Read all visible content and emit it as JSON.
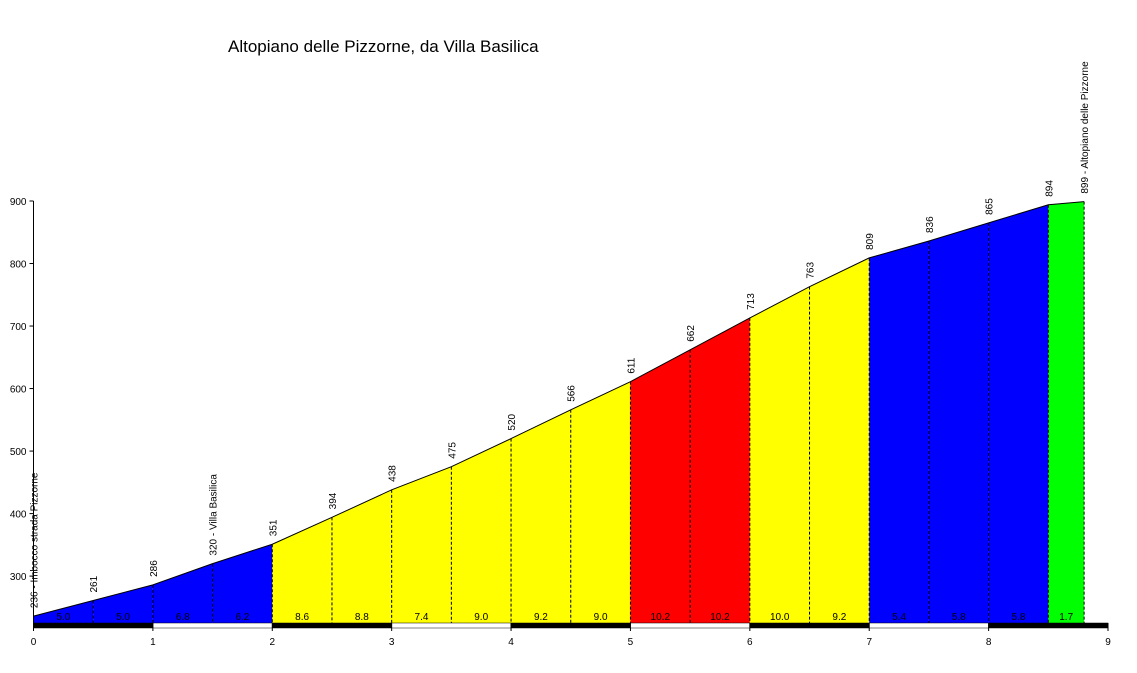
{
  "chart_data": {
    "type": "area",
    "title": "Altopiano delle Pizzorne, da Villa Basilica",
    "x": [
      0,
      0.5,
      1,
      1.5,
      2,
      2.5,
      3,
      3.5,
      4,
      4.5,
      5,
      5.5,
      6,
      6.5,
      7,
      7.5,
      8,
      8.5,
      8.8
    ],
    "values": [
      236,
      261,
      286,
      320,
      351,
      394,
      438,
      475,
      520,
      566,
      611,
      662,
      713,
      763,
      809,
      836,
      865,
      894,
      899
    ],
    "value_labels": [
      "236 - Imbocco strada Pizzorne",
      "261",
      "286",
      "320 - Villa Basilica",
      "351",
      "394",
      "438",
      "475",
      "520",
      "566",
      "611",
      "662",
      "713",
      "763",
      "809",
      "836",
      "865",
      "894",
      "899 - Altopiano delle Pizzorne"
    ],
    "gradients": {
      "values": [
        5.0,
        5.0,
        6.8,
        6.2,
        8.6,
        8.8,
        7.4,
        9.0,
        9.2,
        9.0,
        10.2,
        10.2,
        10.0,
        9.2,
        5.4,
        5.8,
        5.8,
        1.7
      ],
      "value_labels": [
        "5.0",
        "5.0",
        "6.8",
        "6.2",
        "8.6",
        "8.8",
        "7.4",
        "9.0",
        "9.2",
        "9.0",
        "10.2",
        "10.2",
        "10.0",
        "9.2",
        "5.4",
        "5.8",
        "5.8",
        "1.7"
      ],
      "colors": [
        "#0000ff",
        "#0000ff",
        "#0000ff",
        "#0000ff",
        "#ffff00",
        "#ffff00",
        "#ffff00",
        "#ffff00",
        "#ffff00",
        "#ffff00",
        "#ff0000",
        "#ff0000",
        "#ffff00",
        "#ffff00",
        "#0000ff",
        "#0000ff",
        "#0000ff",
        "#00ff00"
      ]
    },
    "xlim": [
      0,
      9
    ],
    "xticks": [
      0,
      1,
      2,
      3,
      4,
      5,
      6,
      7,
      8,
      9
    ],
    "ylim": [
      225,
      900
    ],
    "yticks": [
      300,
      400,
      500,
      600,
      700,
      800,
      900
    ]
  }
}
